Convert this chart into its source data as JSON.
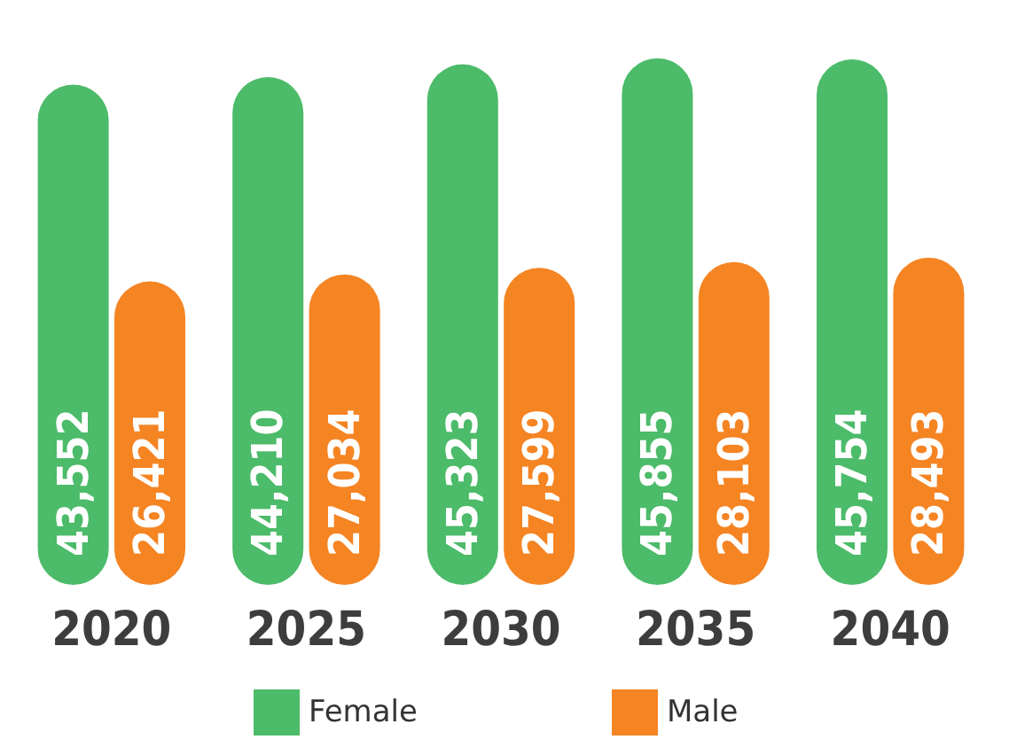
{
  "chart_data": {
    "type": "bar",
    "categories": [
      "2020",
      "2025",
      "2030",
      "2035",
      "2040"
    ],
    "series": [
      {
        "name": "Female",
        "color": "#4cbb6a",
        "values": [
          43552,
          44210,
          45323,
          45855,
          45754
        ],
        "value_labels": [
          "43,552",
          "44,210",
          "45,323",
          "45,855",
          "45,754"
        ]
      },
      {
        "name": "Male",
        "color": "#f58423",
        "values": [
          26421,
          27034,
          27599,
          28103,
          28493
        ],
        "value_labels": [
          "26,421",
          "27,034",
          "27,599",
          "28,103",
          "28,493"
        ]
      }
    ],
    "legend": "bottom",
    "grid": false
  }
}
